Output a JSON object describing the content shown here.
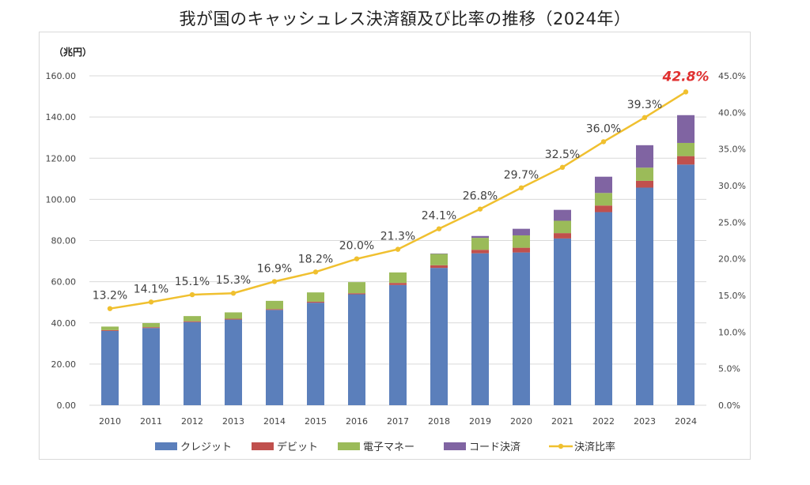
{
  "chart_data": {
    "type": "bar",
    "title": "我が国のキャッシュレス決済額及び比率の推移（2024年）",
    "y_unit_label": "（兆円）",
    "categories": [
      "2010",
      "2011",
      "2012",
      "2013",
      "2014",
      "2015",
      "2016",
      "2017",
      "2018",
      "2019",
      "2020",
      "2021",
      "2022",
      "2023",
      "2024"
    ],
    "stacked": true,
    "series": [
      {
        "name": "クレジット",
        "color": "#5b7fbb",
        "values": [
          36.1,
          37.5,
          40.4,
          41.6,
          46.3,
          49.8,
          53.9,
          58.4,
          66.7,
          73.8,
          74.2,
          81.0,
          93.8,
          105.7,
          116.9
        ]
      },
      {
        "name": "デビット",
        "color": "#c0504d",
        "values": [
          0.4,
          0.4,
          0.4,
          0.4,
          0.4,
          0.5,
          0.5,
          1.0,
          1.3,
          1.7,
          2.3,
          2.6,
          3.2,
          3.3,
          4.1
        ]
      },
      {
        "name": "電子マネー",
        "color": "#9bbb59",
        "values": [
          1.7,
          2.0,
          2.5,
          3.1,
          4.0,
          4.5,
          5.4,
          5.1,
          5.5,
          5.8,
          6.0,
          6.0,
          6.1,
          6.4,
          6.4
        ]
      },
      {
        "name": "コード決済",
        "color": "#8064a2",
        "values": [
          0,
          0,
          0,
          0,
          0,
          0,
          0,
          0,
          0.2,
          0.9,
          3.2,
          5.3,
          7.9,
          10.9,
          13.5
        ]
      }
    ],
    "line_series": {
      "name": "決済比率",
      "color": "#f0c02f",
      "axis": "right",
      "values": [
        13.2,
        14.1,
        15.1,
        15.3,
        16.9,
        18.2,
        20.0,
        21.3,
        24.1,
        26.8,
        29.7,
        32.5,
        36.0,
        39.3,
        42.8
      ],
      "labels": [
        "13.2%",
        "14.1%",
        "15.1%",
        "15.3%",
        "16.9%",
        "18.2%",
        "20.0%",
        "21.3%",
        "24.1%",
        "26.8%",
        "29.7%",
        "32.5%",
        "36.0%",
        "39.3%",
        "42.8%"
      ],
      "highlight_index": 14,
      "highlight_color": "#e03030"
    },
    "y_left": {
      "min": 0,
      "max": 160,
      "step": 20,
      "tick_labels": [
        "0.00",
        "20.00",
        "40.00",
        "60.00",
        "80.00",
        "100.00",
        "120.00",
        "140.00",
        "160.00"
      ]
    },
    "y_right": {
      "min": 0,
      "max": 45,
      "step": 5,
      "tick_labels": [
        "0.0%",
        "5.0%",
        "10.0%",
        "15.0%",
        "20.0%",
        "25.0%",
        "30.0%",
        "35.0%",
        "40.0%",
        "45.0%"
      ]
    },
    "grid": true,
    "legend_position": "bottom"
  }
}
